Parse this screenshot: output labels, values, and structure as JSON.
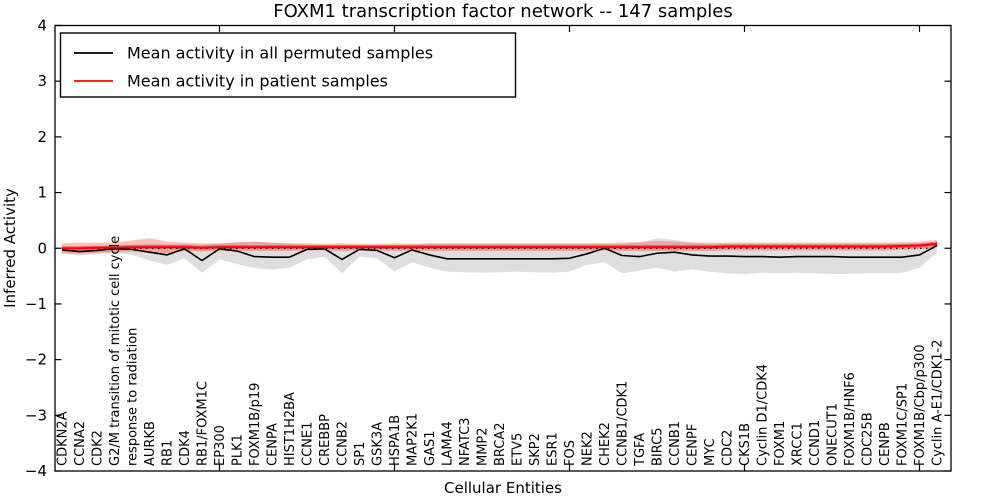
{
  "figure": {
    "title": "FOXM1 transcription factor network -- 147 samples",
    "xlabel": "Cellular Entities",
    "ylabel": "Inferred Activity"
  },
  "legend": {
    "items": [
      {
        "label": "Mean activity in all permuted samples",
        "color": "#000000"
      },
      {
        "label": "Mean activity in patient samples",
        "color": "#ff0000"
      }
    ]
  },
  "chart_data": {
    "type": "line",
    "title": "FOXM1 transcription factor network -- 147 samples",
    "xlabel": "Cellular Entities",
    "ylabel": "Inferred Activity",
    "ylim": [
      -4,
      4
    ],
    "yticks": [
      -4,
      -3,
      -2,
      -1,
      0,
      1,
      2,
      3,
      4
    ],
    "xtick_indices": [
      9,
      19,
      29,
      39,
      49
    ],
    "grid": false,
    "legend_position": "upper left",
    "zero_line": true,
    "categories": [
      "CDKN2A",
      "CCNA2",
      "CDK2",
      "G2/M transition of mitotic cell cycle",
      "response to radiation",
      "AURKB",
      "RB1",
      "CDK4",
      "RB1/FOXM1C",
      "EP300",
      "PLK1",
      "FOXM1B/p19",
      "CENPA",
      "HIST1H2BA",
      "CCNE1",
      "CREBBP",
      "CCNB2",
      "SP1",
      "GSK3A",
      "HSPA1B",
      "MAP2K1",
      "GAS1",
      "LAMA4",
      "NFATC3",
      "MMP2",
      "BRCA2",
      "ETV5",
      "SKP2",
      "ESR1",
      "FOS",
      "NEK2",
      "CHEK2",
      "CCNB1/CDK1",
      "TGFA",
      "BIRC5",
      "CCNB1",
      "CENPF",
      "MYC",
      "CDC2",
      "CKS1B",
      "Cyclin D1/CDK4",
      "FOXM1",
      "XRCC1",
      "CCND1",
      "ONECUT1",
      "FOXM1B/HNF6",
      "CDC25B",
      "CENPB",
      "FOXM1C/SP1",
      "FOXM1B/Cbp/p300",
      "Cyclin A-E1/CDK1-2"
    ],
    "series": [
      {
        "name": "Mean activity in all permuted samples",
        "color": "#000000",
        "line_width": 1.6,
        "band_color": "rgba(0,0,0,0.13)",
        "values": [
          -0.03,
          -0.06,
          -0.04,
          -0.01,
          -0.02,
          -0.07,
          -0.12,
          -0.01,
          -0.22,
          -0.01,
          -0.05,
          -0.15,
          -0.16,
          -0.16,
          -0.02,
          -0.01,
          -0.2,
          -0.02,
          -0.04,
          -0.17,
          -0.03,
          -0.12,
          -0.19,
          -0.19,
          -0.19,
          -0.19,
          -0.19,
          -0.19,
          -0.19,
          -0.18,
          -0.1,
          0.0,
          -0.13,
          -0.15,
          -0.09,
          -0.07,
          -0.12,
          -0.14,
          -0.14,
          -0.15,
          -0.15,
          -0.16,
          -0.15,
          -0.15,
          -0.15,
          -0.16,
          -0.16,
          -0.16,
          -0.16,
          -0.12,
          0.05
        ],
        "band_lo": [
          -0.1,
          -0.13,
          -0.11,
          -0.08,
          -0.12,
          -0.22,
          -0.3,
          -0.18,
          -0.44,
          -0.2,
          -0.28,
          -0.36,
          -0.38,
          -0.35,
          -0.2,
          -0.15,
          -0.45,
          -0.15,
          -0.18,
          -0.42,
          -0.25,
          -0.35,
          -0.42,
          -0.43,
          -0.44,
          -0.43,
          -0.42,
          -0.43,
          -0.44,
          -0.42,
          -0.3,
          -0.25,
          -0.45,
          -0.4,
          -0.35,
          -0.42,
          -0.38,
          -0.42,
          -0.45,
          -0.46,
          -0.44,
          -0.45,
          -0.44,
          -0.45,
          -0.46,
          -0.46,
          -0.45,
          -0.45,
          -0.44,
          -0.35,
          -0.08
        ],
        "band_hi": [
          0.03,
          0.02,
          0.03,
          0.05,
          0.06,
          0.08,
          0.07,
          0.08,
          0.06,
          0.08,
          0.1,
          0.12,
          0.1,
          0.08,
          0.06,
          0.06,
          0.06,
          0.06,
          0.06,
          0.06,
          0.07,
          0.08,
          0.08,
          0.08,
          0.08,
          0.08,
          0.08,
          0.08,
          0.08,
          0.08,
          0.08,
          0.08,
          0.08,
          0.1,
          0.18,
          0.15,
          0.1,
          0.08,
          0.08,
          0.08,
          0.08,
          0.08,
          0.08,
          0.08,
          0.08,
          0.08,
          0.08,
          0.08,
          0.08,
          0.08,
          0.12
        ]
      },
      {
        "name": "Mean activity in patient samples",
        "color": "#ff0000",
        "line_width": 1.8,
        "band_color": "rgba(255,0,0,0.25)",
        "inner_band_halfwidth": 0.035,
        "inner_band_color": "rgba(255,0,0,0.45)",
        "values": [
          0.0,
          0.0,
          0.01,
          0.01,
          0.02,
          0.02,
          0.02,
          0.02,
          0.01,
          0.02,
          0.02,
          0.02,
          0.02,
          0.02,
          0.02,
          0.02,
          0.02,
          0.02,
          0.02,
          0.02,
          0.02,
          0.02,
          0.02,
          0.02,
          0.02,
          0.02,
          0.02,
          0.02,
          0.02,
          0.02,
          0.02,
          0.02,
          0.02,
          0.02,
          0.02,
          0.02,
          0.02,
          0.02,
          0.03,
          0.03,
          0.03,
          0.03,
          0.03,
          0.03,
          0.03,
          0.03,
          0.03,
          0.03,
          0.04,
          0.05,
          0.08
        ],
        "band_lo": [
          -0.09,
          -0.1,
          -0.08,
          -0.07,
          -0.06,
          -0.08,
          -0.09,
          -0.05,
          -0.06,
          -0.05,
          -0.05,
          -0.05,
          -0.05,
          -0.05,
          -0.04,
          -0.04,
          -0.05,
          -0.04,
          -0.04,
          -0.05,
          -0.04,
          -0.05,
          -0.05,
          -0.05,
          -0.05,
          -0.05,
          -0.05,
          -0.05,
          -0.05,
          -0.05,
          -0.05,
          -0.04,
          -0.05,
          -0.05,
          -0.05,
          -0.05,
          -0.05,
          -0.05,
          -0.04,
          -0.04,
          -0.04,
          -0.04,
          -0.04,
          -0.04,
          -0.04,
          -0.04,
          -0.04,
          -0.04,
          -0.03,
          -0.02,
          0.02
        ],
        "band_hi": [
          0.09,
          0.1,
          0.1,
          0.1,
          0.14,
          0.18,
          0.12,
          0.1,
          0.09,
          0.09,
          0.11,
          0.12,
          0.1,
          0.09,
          0.09,
          0.08,
          0.09,
          0.08,
          0.08,
          0.09,
          0.08,
          0.09,
          0.09,
          0.09,
          0.09,
          0.09,
          0.09,
          0.09,
          0.09,
          0.09,
          0.09,
          0.09,
          0.1,
          0.11,
          0.13,
          0.12,
          0.1,
          0.1,
          0.1,
          0.1,
          0.1,
          0.1,
          0.1,
          0.1,
          0.1,
          0.1,
          0.1,
          0.1,
          0.11,
          0.12,
          0.15
        ]
      }
    ]
  }
}
